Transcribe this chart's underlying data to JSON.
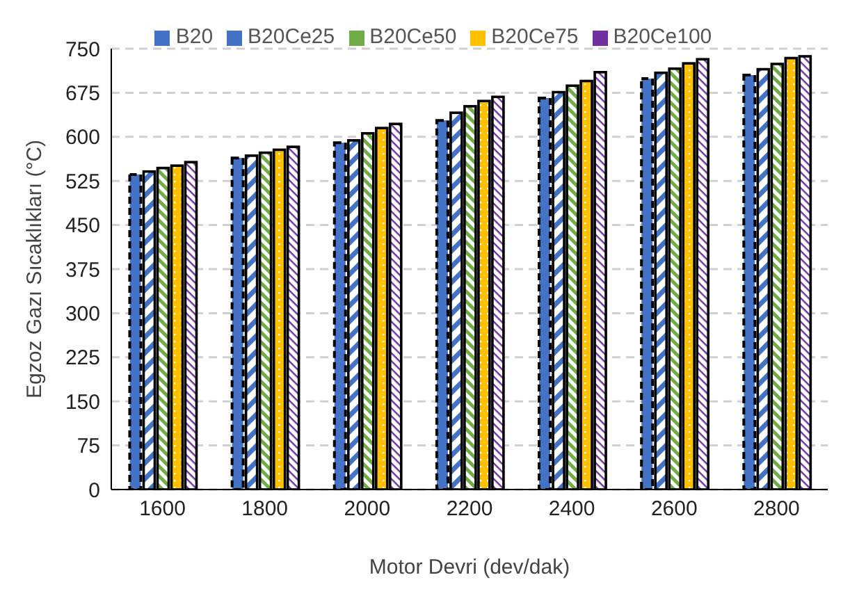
{
  "chart_data": {
    "type": "bar",
    "xlabel": "Motor Devri (dev/dak)",
    "ylabel": "Egzoz Gazı Sıcaklıkları (°C)",
    "categories": [
      "1600",
      "1800",
      "2000",
      "2200",
      "2400",
      "2600",
      "2800"
    ],
    "series": [
      {
        "name": "B20",
        "color": "#4472c4",
        "values": [
          536,
          564,
          590,
          628,
          666,
          699,
          705
        ]
      },
      {
        "name": "B20Ce25",
        "color": "#4472c4",
        "values": [
          541,
          568,
          594,
          641,
          676,
          709,
          715
        ]
      },
      {
        "name": "B20Ce50",
        "color": "#70ad47",
        "values": [
          547,
          573,
          606,
          652,
          687,
          716,
          724
        ]
      },
      {
        "name": "B20Ce75",
        "color": "#ffc000",
        "values": [
          551,
          578,
          615,
          661,
          695,
          725,
          734
        ]
      },
      {
        "name": "B20Ce100",
        "color": "#7030a0",
        "values": [
          557,
          583,
          622,
          668,
          710,
          732,
          737
        ]
      }
    ],
    "ylim": [
      0,
      750
    ],
    "yticks": [
      0,
      75,
      150,
      225,
      300,
      375,
      450,
      525,
      600,
      675,
      750
    ],
    "grid": "y",
    "legend": "top"
  }
}
